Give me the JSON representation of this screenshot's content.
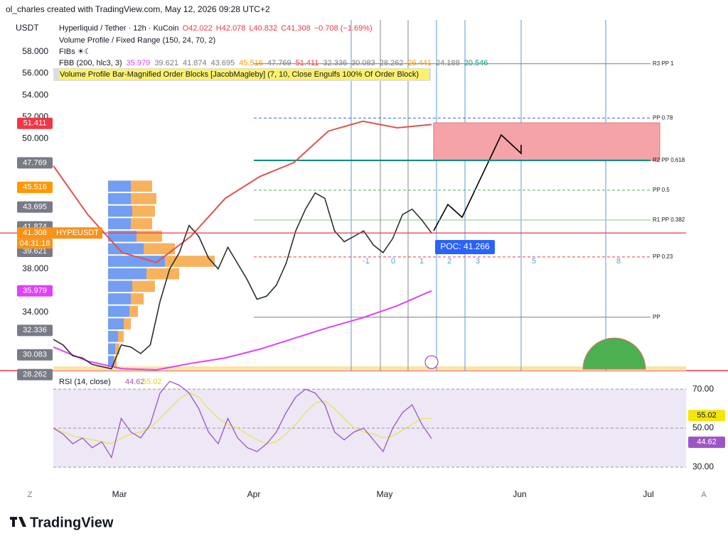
{
  "watermark": "ol_charles created with TradingView.com, May 12, 2026 09:28 UTC+2",
  "currency": "USDT",
  "legend": {
    "symbol": "Hyperliquid / Tether · 12h · KuCoin",
    "open": "O42.022",
    "high": "H42.078",
    "low": "L40.832",
    "close": "C41.308",
    "change": "−0.708 (−1.69%)",
    "volume_profile": "Volume Profile / Fixed Range (150, 24, 70, 2)",
    "fibs": "FIBs ☀☾",
    "fbb": "FBB (200, hlc3, 3)",
    "fbb_values": [
      {
        "text": "35.979",
        "color": "#e040fb"
      },
      {
        "text": "39.621",
        "color": "#787b86"
      },
      {
        "text": "41.874",
        "color": "#787b86"
      },
      {
        "text": "43.695",
        "color": "#787b86"
      },
      {
        "text": "45.516",
        "color": "#ff9800"
      },
      {
        "text": "47.769",
        "color": "#787b86"
      },
      {
        "text": "51.411",
        "color": "#f23645"
      },
      {
        "text": "32.336",
        "color": "#787b86"
      },
      {
        "text": "30.083",
        "color": "#787b86"
      },
      {
        "text": "28.262",
        "color": "#787b86"
      },
      {
        "text": "26.441",
        "color": "#ff9800"
      },
      {
        "text": "24.188",
        "color": "#787b86"
      },
      {
        "text": "20.546",
        "color": "#089981"
      }
    ],
    "order_blocks": "Volume Profile Bar-Magnified Order Blocks [JacobMagleby] (7, 10, Close Engulfs 100% Of Order Block)"
  },
  "price": {
    "ylim": [
      28.63,
      60.94
    ],
    "yticks": [
      {
        "value": 58,
        "label": "58.000"
      },
      {
        "value": 56,
        "label": "56.000"
      },
      {
        "value": 54,
        "label": "54.000"
      },
      {
        "value": 52,
        "label": "52.000"
      },
      {
        "value": 50,
        "label": "50.000"
      },
      {
        "value": 38,
        "label": "38.000"
      },
      {
        "value": 34,
        "label": "34.000"
      }
    ],
    "labels": [
      {
        "value": 51.411,
        "label": "51.411",
        "color": "#f23645"
      },
      {
        "value": 47.769,
        "label": "47.769",
        "color": "#787b86"
      },
      {
        "value": 45.516,
        "label": "45.516",
        "color": "#ff9800"
      },
      {
        "value": 43.695,
        "label": "43.695",
        "color": "#787b86"
      },
      {
        "value": 41.874,
        "label": "41.874",
        "color": "#787b86"
      },
      {
        "value": 41.308,
        "label": "41.308",
        "color": "#f7931a"
      },
      {
        "value": 39.621,
        "label": "39.621",
        "color": "#787b86"
      },
      {
        "value": 35.979,
        "label": "35.979",
        "color": "#e040fb"
      },
      {
        "value": 32.336,
        "label": "32.336",
        "color": "#787b86"
      },
      {
        "value": 30.083,
        "label": "30.083",
        "color": "#787b86"
      },
      {
        "value": 28.262,
        "label": "28.262",
        "color": "#787b86"
      }
    ],
    "symbol": "HYPEUSDT",
    "countdown": "04:31:18",
    "closes": [
      31.5,
      31,
      30,
      29.8,
      29.2,
      29,
      28.8,
      31,
      30.8,
      30.2,
      31,
      35,
      38,
      39.5,
      42,
      41,
      39,
      38,
      40,
      38.5,
      37,
      35.2,
      35.5,
      36.5,
      38.5,
      41.5,
      43.5,
      45,
      44.5,
      41.5,
      40.5,
      41,
      41.5,
      40.2,
      39.5,
      40.8,
      43,
      43.5,
      42.5,
      41.308
    ],
    "upper_band": [
      47.5,
      43,
      39.5,
      38.6,
      41,
      44.5,
      46.5,
      47.8,
      50.7,
      51.6,
      51,
      51.3
    ],
    "basis": [
      30.8,
      29.5,
      28.8,
      28.7,
      29.3,
      29.8,
      30.6,
      31.6,
      32.6,
      33.5,
      34.6,
      35.979
    ],
    "fib_levels": [
      {
        "value": 56.9,
        "label": "R3 PP 1",
        "color": "#787b86"
      },
      {
        "value": 51.9,
        "label": "PP 0.78",
        "color": "#2962ff"
      },
      {
        "value": 48.0,
        "label": "R2 PP 0.618",
        "color": "#00897b"
      },
      {
        "value": 45.25,
        "label": "PP 0.5",
        "color": "#4caf50"
      },
      {
        "value": 42.5,
        "label": "R1 PP 0.382",
        "color": "#81c784"
      },
      {
        "value": 39.1,
        "label": "PP 0.23",
        "color": "#f23645"
      },
      {
        "value": 33.55,
        "label": "PP",
        "color": "#787b86"
      }
    ],
    "poc": "POC: 41.266",
    "volume_profile": {
      "up": [
        32,
        32,
        34,
        32,
        40,
        50,
        80,
        54,
        34,
        32,
        30,
        22,
        14,
        10,
        8
      ],
      "down": [
        30,
        36,
        32,
        30,
        36,
        44,
        70,
        46,
        32,
        18,
        12,
        10,
        8,
        6,
        4
      ]
    }
  },
  "cycles": [
    "-1",
    "0",
    "1",
    "2",
    "3",
    "5",
    "8"
  ],
  "time_axis": [
    "Mar",
    "Apr",
    "May",
    "Jun",
    "Jul"
  ],
  "corner_left": "Z",
  "corner_right": "A",
  "rsi": {
    "title": "RSI (14, close)",
    "value": "44.62",
    "ma_value": "55.02",
    "ylim": [
      22,
      78.4
    ],
    "yticks": [
      {
        "value": 70,
        "label": "70.00"
      },
      {
        "value": 50,
        "label": "50.00"
      },
      {
        "value": 30,
        "label": "30.00"
      }
    ],
    "labels": [
      {
        "value": 55.02,
        "label": "55.02",
        "color": "#f5e50a"
      },
      {
        "value": 44.62,
        "label": "44.62",
        "color": "#9c56c4"
      }
    ],
    "values": [
      50,
      47,
      42,
      45,
      40,
      43,
      35,
      55,
      48,
      45,
      52,
      68,
      74,
      72,
      68,
      60,
      48,
      42,
      55,
      45,
      40,
      38,
      42,
      48,
      58,
      66,
      70,
      68,
      62,
      48,
      44,
      48,
      50,
      44,
      38,
      50,
      58,
      62,
      52,
      44.62
    ],
    "ma": [
      50,
      48,
      46,
      45,
      44,
      43,
      42,
      45,
      47,
      48,
      50,
      55,
      60,
      65,
      68,
      66,
      60,
      55,
      52,
      50,
      47,
      44,
      42,
      43,
      47,
      52,
      58,
      63,
      64,
      60,
      55,
      50,
      48,
      47,
      45,
      46,
      49,
      52,
      55,
      55.02
    ]
  },
  "brand": "TradingView"
}
